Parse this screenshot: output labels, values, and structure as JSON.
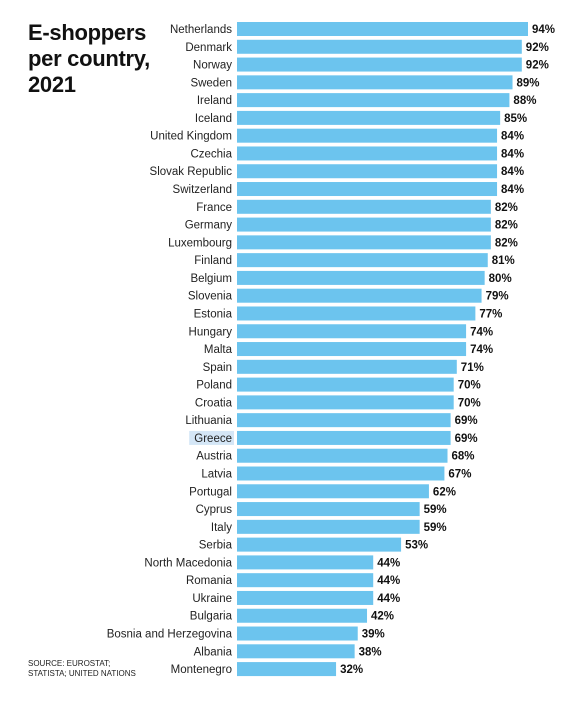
{
  "title_lines": [
    "E-shoppers",
    "per country,",
    "2021"
  ],
  "source_lines": [
    "SOURCE: EUROSTAT;",
    "STATISTA; UNITED NATIONS"
  ],
  "colors": {
    "bar": "#6cc4ee",
    "highlight_bg": "#d4e6f6"
  },
  "chart_data": {
    "type": "bar",
    "orientation": "horizontal",
    "title": "E-shoppers per country, 2021",
    "unit": "%",
    "highlighted_category": "Greece",
    "categories": [
      "Netherlands",
      "Denmark",
      "Norway",
      "Sweden",
      "Ireland",
      "Iceland",
      "United Kingdom",
      "Czechia",
      "Slovak Republic",
      "Switzerland",
      "France",
      "Germany",
      "Luxembourg",
      "Finland",
      "Belgium",
      "Slovenia",
      "Estonia",
      "Hungary",
      "Malta",
      "Spain",
      "Poland",
      "Croatia",
      "Lithuania",
      "Greece",
      "Austria",
      "Latvia",
      "Portugal",
      "Cyprus",
      "Italy",
      "Serbia",
      "North Macedonia",
      "Romania",
      "Ukraine",
      "Bulgaria",
      "Bosnia and Herzegovina",
      "Albania",
      "Montenegro"
    ],
    "values": [
      94,
      92,
      92,
      89,
      88,
      85,
      84,
      84,
      84,
      84,
      82,
      82,
      82,
      81,
      80,
      79,
      77,
      74,
      74,
      71,
      70,
      70,
      69,
      69,
      68,
      67,
      62,
      59,
      59,
      53,
      44,
      44,
      44,
      42,
      39,
      38,
      32
    ],
    "value_labels": [
      "94%",
      "92%",
      "92%",
      "89%",
      "88%",
      "85%",
      "84%",
      "84%",
      "84%",
      "84%",
      "82%",
      "82%",
      "82%",
      "81%",
      "80%",
      "79%",
      "77%",
      "74%",
      "74%",
      "71%",
      "70%",
      "70%",
      "69%",
      "69%",
      "68%",
      "67%",
      "62%",
      "59%",
      "59%",
      "53%",
      "44%",
      "44%",
      "44%",
      "42%",
      "39%",
      "38%",
      "32%"
    ],
    "xlim": [
      0,
      94
    ],
    "grid": false
  }
}
